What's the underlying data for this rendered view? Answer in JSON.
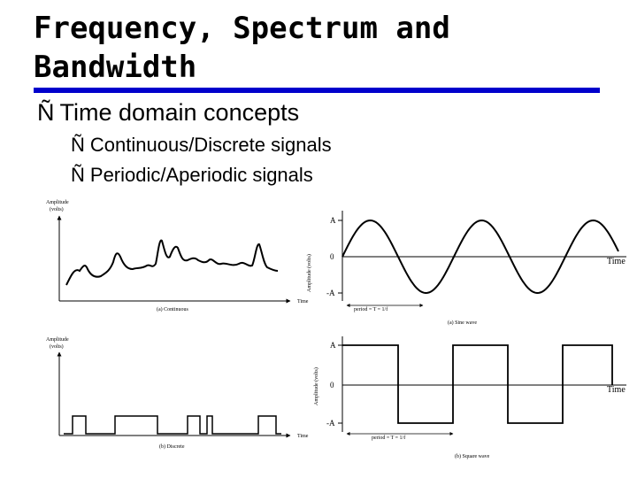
{
  "slide": {
    "title_line1": "Frequency, Spectrum and",
    "title_line2": "Bandwidth",
    "bullet_mark": "Ñ",
    "bullets": [
      "Time domain concepts",
      "Continuous/Discrete signals",
      "Periodic/Aperiodic signals"
    ]
  },
  "figures": {
    "continuous": {
      "ylabel_line1": "Amplitude",
      "ylabel_line2": "(volts)",
      "xlabel": "Time",
      "caption": "(a) Continuous"
    },
    "discrete": {
      "ylabel_line1": "Amplitude",
      "ylabel_line2": "(volts)",
      "xlabel": "Time",
      "caption": "(b) Discrete"
    },
    "sine": {
      "ylabel": "Amplitude (volts)",
      "xlabel": "Time",
      "tick_top": "A",
      "tick_mid": "0",
      "tick_bot": "-A",
      "period": "period = T = 1/f",
      "caption": "(a) Sine wave"
    },
    "square": {
      "ylabel": "Amplitude (volts)",
      "xlabel": "Time",
      "tick_top": "A",
      "tick_mid": "0",
      "tick_bot": "-A",
      "period": "period = T = 1/f",
      "caption": "(b) Square wave"
    }
  }
}
